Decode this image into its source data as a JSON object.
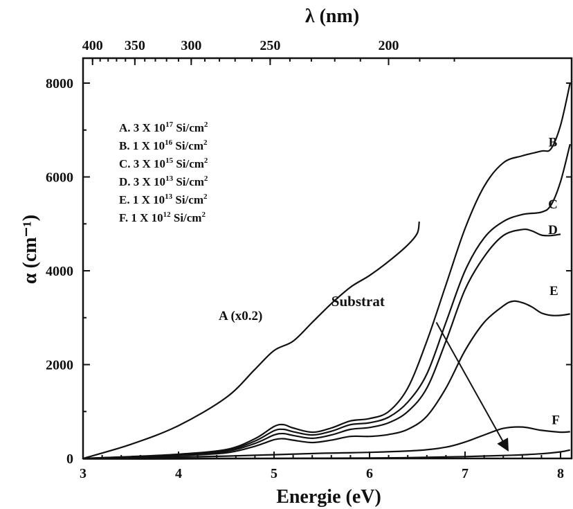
{
  "chart_data": {
    "type": "line",
    "xlabel": "Energie (eV)",
    "ylabel": "α (cm⁻¹)",
    "top_axis_label": "λ (nm)",
    "xlim": [
      3,
      8.1
    ],
    "ylim": [
      0,
      8000
    ],
    "x_ticks": [
      3,
      4,
      5,
      6,
      7,
      8
    ],
    "y_ticks": [
      0,
      2000,
      4000,
      6000,
      8000
    ],
    "top_ticks_nm": [
      400,
      350,
      300,
      250,
      200
    ],
    "legend": [
      {
        "prefix": "A. 3 X 10",
        "exp": "17",
        "unit": " Si/cm",
        "unit_exp": "2"
      },
      {
        "prefix": "B. 1 X 10",
        "exp": "16",
        "unit": " Si/cm",
        "unit_exp": "2"
      },
      {
        "prefix": "C. 3 X 10",
        "exp": "15",
        "unit": " Si/cm",
        "unit_exp": "2"
      },
      {
        "prefix": "D. 3 X 10",
        "exp": "13",
        "unit": " Si/cm",
        "unit_exp": "2"
      },
      {
        "prefix": "E. 1 X 10",
        "exp": "13",
        "unit": " Si/cm",
        "unit_exp": "2"
      },
      {
        "prefix": "F. 1 X 10",
        "exp": "12",
        "unit": " Si/cm",
        "unit_exp": "2"
      }
    ],
    "series": [
      {
        "name": "A (x0.2)",
        "x": [
          3.0,
          3.5,
          4.0,
          4.5,
          4.8,
          5.0,
          5.2,
          5.4,
          5.6,
          5.8,
          6.0,
          6.2,
          6.4,
          6.5,
          6.52
        ],
        "y": [
          0,
          300,
          700,
          1300,
          1900,
          2300,
          2500,
          2900,
          3300,
          3650,
          3900,
          4200,
          4550,
          4800,
          5050
        ]
      },
      {
        "name": "B",
        "x": [
          3.0,
          3.5,
          4.0,
          4.5,
          4.8,
          5.0,
          5.1,
          5.2,
          5.4,
          5.6,
          5.8,
          6.0,
          6.2,
          6.4,
          6.6,
          6.8,
          7.0,
          7.2,
          7.4,
          7.6,
          7.8,
          7.9,
          8.0,
          8.1
        ],
        "y": [
          0,
          40,
          90,
          190,
          420,
          680,
          720,
          650,
          560,
          650,
          800,
          850,
          1000,
          1500,
          2500,
          3700,
          4900,
          5800,
          6300,
          6450,
          6550,
          6600,
          7100,
          8000
        ]
      },
      {
        "name": "C",
        "x": [
          3.0,
          3.5,
          4.0,
          4.5,
          4.8,
          5.0,
          5.1,
          5.2,
          5.4,
          5.6,
          5.8,
          6.0,
          6.2,
          6.4,
          6.6,
          6.8,
          7.0,
          7.2,
          7.4,
          7.6,
          7.8,
          7.9,
          8.0,
          8.1
        ],
        "y": [
          0,
          35,
          80,
          170,
          370,
          590,
          620,
          570,
          500,
          580,
          720,
          760,
          880,
          1200,
          1800,
          2900,
          4000,
          4700,
          5050,
          5200,
          5250,
          5400,
          5900,
          6700
        ]
      },
      {
        "name": "D",
        "x": [
          3.0,
          3.5,
          4.0,
          4.5,
          4.8,
          5.0,
          5.1,
          5.2,
          5.4,
          5.6,
          5.8,
          6.0,
          6.2,
          6.4,
          6.6,
          6.8,
          7.0,
          7.2,
          7.4,
          7.6,
          7.7,
          7.8,
          7.9,
          8.0
        ],
        "y": [
          0,
          30,
          70,
          150,
          320,
          500,
          530,
          490,
          430,
          500,
          620,
          660,
          760,
          1000,
          1500,
          2500,
          3600,
          4300,
          4750,
          4880,
          4850,
          4760,
          4750,
          4780
        ]
      },
      {
        "name": "E",
        "x": [
          3.0,
          3.5,
          4.0,
          4.5,
          4.8,
          5.0,
          5.1,
          5.2,
          5.4,
          5.6,
          5.8,
          6.0,
          6.2,
          6.4,
          6.6,
          6.8,
          7.0,
          7.2,
          7.4,
          7.5,
          7.6,
          7.7,
          7.8,
          7.9,
          8.0,
          8.1
        ],
        "y": [
          0,
          25,
          60,
          120,
          260,
          400,
          420,
          390,
          340,
          390,
          470,
          470,
          510,
          620,
          900,
          1500,
          2300,
          2900,
          3250,
          3350,
          3320,
          3230,
          3100,
          3050,
          3050,
          3080
        ]
      },
      {
        "name": "F",
        "x": [
          3.0,
          3.5,
          4.0,
          4.5,
          5.0,
          5.5,
          6.0,
          6.5,
          6.8,
          7.0,
          7.2,
          7.4,
          7.6,
          7.8,
          8.0,
          8.1
        ],
        "y": [
          0,
          15,
          30,
          50,
          80,
          110,
          130,
          170,
          240,
          350,
          500,
          640,
          670,
          600,
          560,
          570
        ]
      },
      {
        "name": "Substrat",
        "x": [
          3.0,
          4.0,
          5.0,
          6.0,
          6.5,
          7.0,
          7.5,
          7.8,
          8.0,
          8.1
        ],
        "y": [
          -10,
          -10,
          0,
          10,
          20,
          40,
          70,
          100,
          140,
          180
        ]
      }
    ],
    "curve_labels": [
      {
        "text": "A (x0.2)",
        "x": 4.65,
        "y": 2950
      },
      {
        "text": "B",
        "x": 7.92,
        "y": 6650
      },
      {
        "text": "C",
        "x": 7.92,
        "y": 5330
      },
      {
        "text": "D",
        "x": 7.92,
        "y": 4780
      },
      {
        "text": "E",
        "x": 7.93,
        "y": 3480
      },
      {
        "text": "F",
        "x": 7.95,
        "y": 730
      }
    ],
    "annotation": {
      "text": "Substrat",
      "x": 5.6,
      "y": 3250,
      "arrow_from": [
        6.7,
        2900
      ],
      "arrow_to": [
        7.45,
        170
      ]
    }
  }
}
